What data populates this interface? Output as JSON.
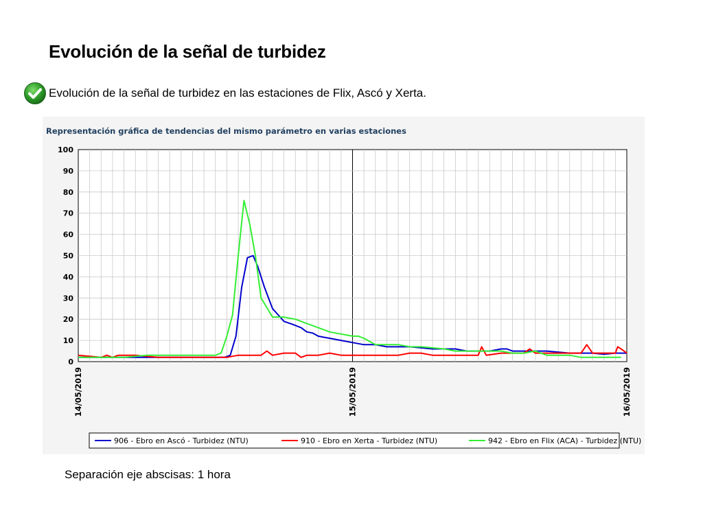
{
  "slide": {
    "title": "Evolución de la señal de turbidez",
    "bullet": "Evolución de la señal de turbidez en las estaciones de Flix, Ascó y Xerta.",
    "bullet_icon": "check-circle-icon",
    "footnote": "Separación eje abscisas: 1 hora"
  },
  "chart_data": {
    "type": "line",
    "title": "Representación gráfica de tendencias del mismo parámetro en varias estaciones",
    "xlabel": "",
    "ylabel": "",
    "x_unit": "hours from 14/05/2019 00:00",
    "xlim": [
      0,
      48
    ],
    "ylim": [
      0,
      100
    ],
    "y_ticks": [
      0,
      10,
      20,
      30,
      40,
      50,
      60,
      70,
      80,
      90,
      100
    ],
    "x_tick_labels": [
      {
        "x": 0,
        "label": "14/05/2019"
      },
      {
        "x": 24,
        "label": "15/05/2019"
      },
      {
        "x": 48,
        "label": "16/05/2019"
      }
    ],
    "grid": true,
    "legend_position": "bottom",
    "series": [
      {
        "name": "906 - Ebro en Ascó - Turbidez (NTU)",
        "color": "#0000cc",
        "x": [
          0,
          2,
          4,
          6,
          8,
          10,
          12,
          12.8,
          13.3,
          13.8,
          14.3,
          14.8,
          15.3,
          15.7,
          16.3,
          17,
          17.5,
          18,
          18.8,
          19.5,
          20,
          20.5,
          21,
          21.5,
          22,
          23,
          24,
          25,
          26,
          27,
          28,
          29,
          30,
          31,
          32,
          33,
          34,
          35,
          36,
          37,
          37.5,
          38,
          39,
          40,
          41,
          42,
          43,
          44,
          45,
          46,
          47,
          47.5,
          48
        ],
        "y": [
          2,
          2,
          2,
          2,
          2,
          2,
          2,
          2,
          3,
          12,
          35,
          49,
          50,
          45,
          35,
          25,
          22,
          19,
          17.5,
          16,
          14,
          13.5,
          12,
          11.5,
          11,
          10,
          9,
          8,
          8,
          7,
          7,
          7,
          6.5,
          6,
          6,
          6,
          5,
          5,
          5,
          6,
          6,
          5,
          5,
          5,
          5,
          4.5,
          4,
          4,
          4,
          3.5,
          4,
          4,
          4
        ]
      },
      {
        "name": "910 - Ebro en Xerta - Turbidez (NTU)",
        "color": "#ff0000",
        "x": [
          0,
          2,
          2.5,
          3,
          3.5,
          5,
          7,
          10,
          12,
          13,
          14,
          15,
          16,
          16.5,
          17,
          18,
          19,
          19.5,
          20,
          21,
          22,
          23,
          24,
          25,
          26,
          28,
          29,
          30,
          31,
          32,
          33,
          34,
          35,
          35.3,
          35.7,
          37,
          39,
          39.5,
          40,
          41,
          42,
          43,
          44,
          44.5,
          45,
          46,
          47,
          47.2,
          47.5,
          48
        ],
        "y": [
          3,
          2,
          3,
          2,
          3,
          3,
          2,
          2,
          2,
          2,
          3,
          3,
          3,
          5,
          3,
          4,
          4,
          2,
          3,
          3,
          4,
          3,
          3,
          3,
          3,
          3,
          4,
          4,
          3,
          3,
          3,
          3,
          3,
          7,
          3,
          4,
          4,
          6,
          4,
          4,
          4,
          4,
          4,
          8,
          4,
          4,
          4,
          7,
          6,
          4
        ]
      },
      {
        "name": "942 - Ebro en Flix (ACA) - Turbidez (NTU)",
        "color": "#33ee33",
        "x": [
          0,
          2,
          4,
          6,
          8,
          10,
          12,
          12.5,
          13,
          13.5,
          14,
          14.5,
          15,
          15.5,
          16,
          17,
          18,
          19,
          20,
          21,
          22,
          23,
          24,
          24.5,
          25,
          26,
          27,
          28,
          29,
          30,
          31,
          32,
          33,
          34,
          35,
          36,
          37,
          38,
          39,
          40,
          41,
          42,
          43,
          44,
          45,
          46,
          47,
          47.5
        ],
        "y": [
          2,
          2,
          2,
          3,
          3,
          3,
          3,
          4,
          12,
          22,
          50,
          76,
          65,
          50,
          30,
          21,
          21,
          20,
          18,
          16,
          14,
          13,
          12,
          12,
          11,
          8,
          8,
          8,
          7,
          7,
          6.5,
          6,
          5,
          5,
          5,
          5,
          5,
          4,
          4,
          5,
          3,
          3,
          3,
          2,
          2,
          2,
          2,
          2
        ]
      }
    ]
  }
}
